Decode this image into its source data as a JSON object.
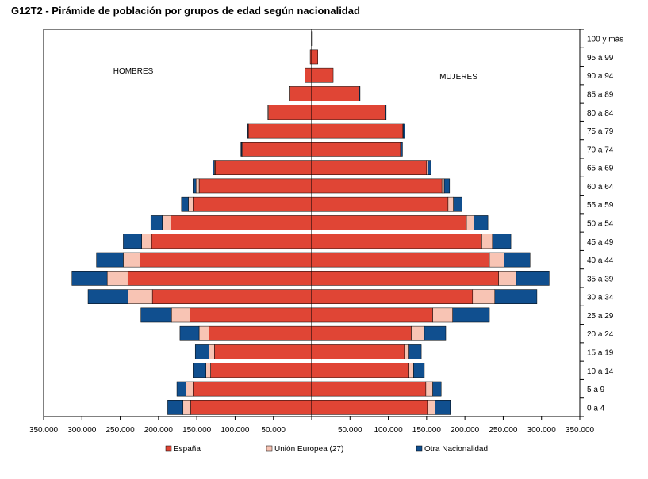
{
  "title": "G12T2 - Pirámide de población por grupos de edad según nacionalidad",
  "colors": {
    "espana": "#e04535",
    "ue": "#f8c4b4",
    "otra": "#104f8f"
  },
  "chart_data": {
    "type": "bar",
    "orientation": "horizontal",
    "sides": {
      "left": "HOMBRES",
      "right": "MUJERES"
    },
    "categories": [
      "0 a 4",
      "5 a 9",
      "10 a 14",
      "15 a 19",
      "20 a 24",
      "25 a 29",
      "30 a 34",
      "35 a 39",
      "40 a 44",
      "45 a 49",
      "50 a 54",
      "55 a 59",
      "60 a 64",
      "65 a 69",
      "70 a 74",
      "75 a 79",
      "80 a 84",
      "85 a 89",
      "90 a 94",
      "95 a 99",
      "100 y más"
    ],
    "xlim": [
      -350000,
      350000
    ],
    "x_ticks": [
      {
        "value": -350000,
        "label": "350.000"
      },
      {
        "value": -300000,
        "label": "300.000"
      },
      {
        "value": -250000,
        "label": "250.000"
      },
      {
        "value": -200000,
        "label": "200.000"
      },
      {
        "value": -150000,
        "label": "150.000"
      },
      {
        "value": -100000,
        "label": "100.000"
      },
      {
        "value": -50000,
        "label": "50.000"
      },
      {
        "value": 50000,
        "label": "50.000"
      },
      {
        "value": 100000,
        "label": "100.000"
      },
      {
        "value": 150000,
        "label": "150.000"
      },
      {
        "value": 200000,
        "label": "200.000"
      },
      {
        "value": 250000,
        "label": "250.000"
      },
      {
        "value": 300000,
        "label": "300.000"
      },
      {
        "value": 350000,
        "label": "350.000"
      }
    ],
    "legend_position": "bottom",
    "series": [
      {
        "name": "España",
        "color_key": "espana",
        "hombres": [
          158000,
          155000,
          132000,
          127000,
          134000,
          159000,
          208000,
          240000,
          224000,
          209000,
          184000,
          155000,
          147000,
          126000,
          91000,
          83000,
          57000,
          29000,
          9000,
          2000,
          500
        ],
        "mujeres": [
          151000,
          149000,
          127000,
          121000,
          130000,
          158000,
          210000,
          244000,
          232000,
          222000,
          202000,
          178000,
          170000,
          150000,
          116000,
          119000,
          96000,
          62000,
          28000,
          8000,
          1000
        ]
      },
      {
        "name": "Unión Europea (27)",
        "color_key": "ue",
        "hombres": [
          10000,
          9000,
          6000,
          7000,
          13000,
          24000,
          32000,
          27000,
          22000,
          13000,
          11000,
          6000,
          4000,
          1000,
          500,
          300,
          200,
          100,
          0,
          0,
          0
        ],
        "mujeres": [
          10000,
          9000,
          6000,
          6000,
          17000,
          26000,
          29000,
          23000,
          19000,
          14000,
          10000,
          7000,
          3000,
          1500,
          500,
          300,
          200,
          100,
          0,
          0,
          0
        ],
        "hombres_note": "",
        "mujeres_note": ""
      },
      {
        "name": "Otra Nacionalidad",
        "color_key": "otra",
        "hombres": [
          20000,
          12000,
          17000,
          18000,
          25000,
          40000,
          52000,
          46000,
          35000,
          24000,
          15000,
          9000,
          4000,
          2000,
          1000,
          1000,
          0,
          0,
          0,
          0,
          0
        ],
        "mujeres": [
          20000,
          11000,
          14000,
          16000,
          28000,
          48000,
          55000,
          43000,
          34000,
          24000,
          18000,
          11000,
          7000,
          4000,
          2000,
          2000,
          1000,
          1000,
          0,
          0,
          0
        ]
      }
    ]
  }
}
